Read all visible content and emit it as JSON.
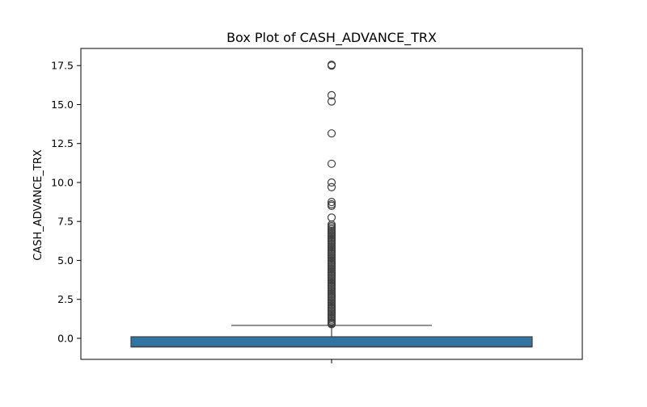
{
  "chart_data": {
    "type": "box",
    "title": "Box Plot of CASH_ADVANCE_TRX",
    "xlabel": "",
    "ylabel": "CASH_ADVANCE_TRX",
    "ylim": [
      -1.35,
      18.6
    ],
    "yticks": [
      0.0,
      2.5,
      5.0,
      7.5,
      10.0,
      12.5,
      15.0,
      17.5
    ],
    "ytick_labels": [
      "0.0",
      "2.5",
      "5.0",
      "7.5",
      "10.0",
      "12.5",
      "15.0",
      "17.5"
    ],
    "grid": false,
    "box": {
      "q1": -0.55,
      "median": -0.55,
      "q3": 0.1,
      "whisker_low": -0.55,
      "whisker_high": 0.83,
      "color": "#3274a1"
    },
    "outliers": [
      17.5,
      17.55,
      15.6,
      15.2,
      13.15,
      11.2,
      10.0,
      9.7,
      8.75,
      8.6,
      8.5,
      7.75,
      7.3,
      7.2,
      7.1,
      7.0,
      6.9,
      6.8,
      6.7,
      6.6,
      6.5,
      6.4,
      6.3,
      6.2,
      6.1,
      6.0,
      5.9,
      5.8,
      5.7,
      5.6,
      5.5,
      5.4,
      5.3,
      5.2,
      5.1,
      5.0,
      4.9,
      4.8,
      4.7,
      4.6,
      4.5,
      4.4,
      4.3,
      4.2,
      4.1,
      4.0,
      3.9,
      3.8,
      3.7,
      3.6,
      3.5,
      3.4,
      3.3,
      3.2,
      3.1,
      3.0,
      2.9,
      2.8,
      2.7,
      2.6,
      2.5,
      2.4,
      2.3,
      2.2,
      2.1,
      2.0,
      1.9,
      1.8,
      1.7,
      1.6,
      1.5,
      1.4,
      1.3,
      1.2,
      1.1,
      1.0,
      0.95,
      0.9
    ]
  }
}
